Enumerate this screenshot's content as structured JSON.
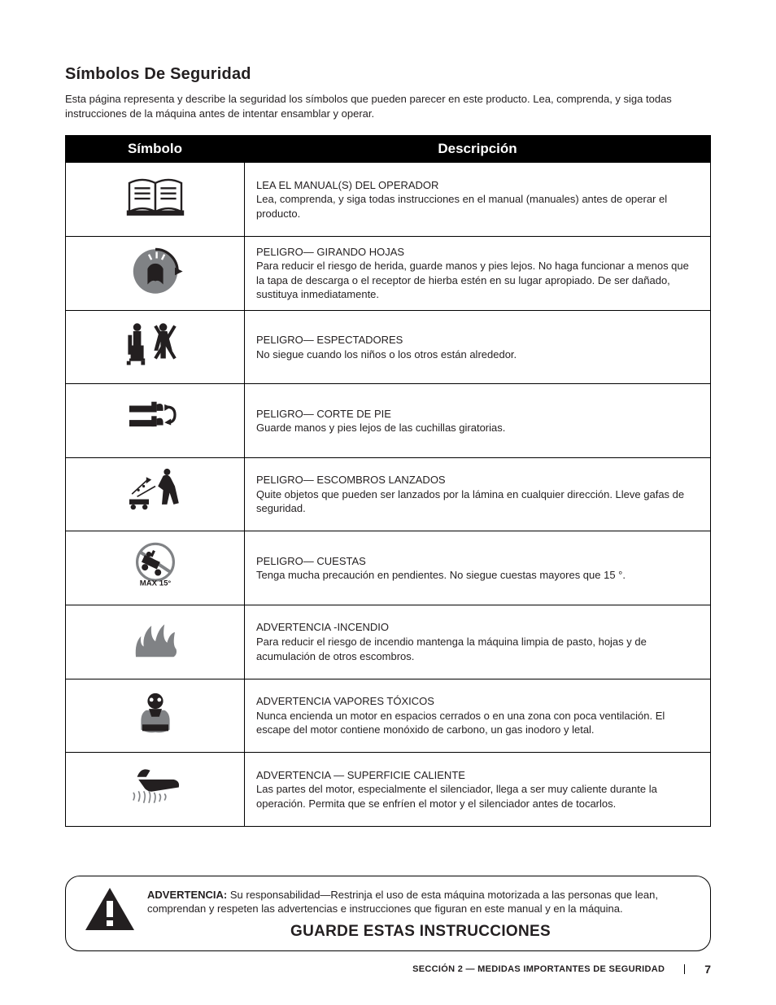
{
  "heading": "Símbolos De Seguridad",
  "intro": "Esta página representa y describe la seguridad los símbolos que pueden parecer en este producto. Lea, comprenda, y siga todas instrucciones  de la máquina antes de intentar ensamblar y operar.",
  "table": {
    "col_symbol": "Símbolo",
    "col_desc": "Descripción",
    "rows": [
      {
        "title": "LEA EL MANUAL(S) DEL OPERADOR",
        "body": "Lea, comprenda, y siga todas instrucciones en el manual (manuales) antes de operar el producto.",
        "icon": "read-manual"
      },
      {
        "title": "PELIGRO— GIRANDO HOJAS",
        "body": "Para reducir el riesgo de herida, guarde manos y pies lejos. No haga funcionar a menos que la tapa de descarga o el receptor de hierba estén en su lugar apropiado. De ser dañado, sustituya inmediatamente.",
        "icon": "rotating-blades"
      },
      {
        "title": "PELIGRO— ESPECTADORES",
        "body": "No siegue cuando los niños o los otros están alrededor.",
        "icon": "bystanders"
      },
      {
        "title": "PELIGRO— CORTE DE PIE",
        "body": "Guarde manos y pies lejos de las cuchillas giratorias.",
        "icon": "foot-cut"
      },
      {
        "title": "PELIGRO— ESCOMBROS LANZADOS",
        "body": "Quite objetos que pueden ser lanzados por la lámina en cualquier dirección. Lleve gafas de seguridad.",
        "icon": "thrown-debris"
      },
      {
        "title": "PELIGRO— CUESTAS",
        "body": "Tenga mucha precaución en pendientes. No siegue cuestas mayores que 15 °.",
        "icon": "slope"
      },
      {
        "title": "ADVERTENCIA -INCENDIO",
        "body": "Para reducir el riesgo de incendio mantenga la máquina limpia de pasto, hojas y de acumulación de otros escombros.",
        "icon": "fire"
      },
      {
        "title": "ADVERTENCIA VAPORES TÓXICOS",
        "body": "Nunca encienda un motor en espacios cerrados o en una zona con poca ventilación. El escape del motor contiene monóxido de carbono, un gas inodoro y letal.",
        "icon": "toxic-fumes"
      },
      {
        "title": "ADVERTENCIA — SUPERFICIE CALIENTE",
        "body": "Las partes del motor, especialmente el silenciador, llega a ser muy caliente durante la operación. Permita que se enfríen el motor y el silenciador antes de tocarlos.",
        "icon": "hot-surface"
      }
    ]
  },
  "warning_box": {
    "label": "ADVERTENCIA:",
    "text": " Su responsabilidad—Restrinja el uso de esta máquina motorizada a las personas que lean, comprendan y respeten las advertencias e instrucciones que figuran en este manual y en la máquina.",
    "save": "GUARDE ESTAS INSTRUCCIONES"
  },
  "footer": {
    "section_label_a": "Sección 2 — ",
    "section_label_b": "Medidas importantes de seguridad",
    "page": "7"
  },
  "svg_icons": {
    "read-manual": "<svg viewBox='0 0 100 80'><g fill='none' stroke='#231f20' stroke-width='3'><path d='M10 62 L10 18 Q30 8 50 18 L50 62 Q30 52 10 62 Z' fill='#fff'/><path d='M50 62 L50 18 Q70 8 90 18 L90 62 Q70 52 50 62 Z' fill='#fff'/><line x1='18' y1='26' x2='42' y2='26'/><line x1='18' y1='34' x2='42' y2='34'/><line x1='18' y1='42' x2='42' y2='42'/><line x1='58' y1='26' x2='82' y2='26'/><line x1='58' y1='34' x2='82' y2='34'/><line x1='58' y1='42' x2='82' y2='42'/><rect x='6' y='60' width='88' height='8' fill='#231f20' stroke='none'/></g></svg>",
    "rotating-blades": "<svg viewBox='0 0 100 80'><circle cx='50' cy='40' r='34' fill='#808285'/><path d='M50 6 A34 34 0 0 1 84 40' fill='none' stroke='#231f20' stroke-width='4'/><polygon points='80,34 92,40 80,46' fill='#231f20'/><path d='M38 60 L38 36 Q42 28 50 28 Q58 28 62 36 L62 60 Q55 52 50 55 Q45 52 38 60 Z' fill='#231f20'/><line x1='44' y1='22' x2='40' y2='14' stroke='#fff' stroke-width='3'/><line x1='52' y1='20' x2='52' y2='10' stroke='#fff' stroke-width='3'/><line x1='60' y1='22' x2='64' y2='14' stroke='#fff' stroke-width='3'/></svg>",
    "bystanders": "<svg viewBox='0 0 100 80'><g fill='#231f20'><circle cx='22' cy='12' r='6'/><rect x='16' y='18' width='12' height='22'/><rect x='12' y='40' width='20' height='20'/><rect x='8' y='24' width='6' height='30'/><circle cx='62' cy='12' r='6'/><path d='M56 18 L68 18 L76 48 L70 48 L66 34 L66 60 L58 60 L58 34 L54 48 L48 48 Z'/><line x1='50' y1='10' x2='80' y2='60' stroke='#231f20' stroke-width='5'/><line x1='80' y1='10' x2='50' y2='60' stroke='#231f20' stroke-width='5'/><rect x='10' y='60' width='24' height='4'/><rect x='6' y='64' width='6' height='6'/><rect x='28' y='64' width='6' height='6'/></g></svg>",
    "foot-cut": "<svg viewBox='0 0 100 80'><g fill='#231f20'><rect x='10' y='20' width='38' height='10'/><rect x='44' y='14' width='8' height='16'/><path d='M52 18 Q62 14 62 24 L62 28 L52 28 Z'/><rect x='10' y='42' width='38' height='10'/><rect x='44' y='36' width='8' height='16'/><path d='M52 40 Q62 36 62 46 L62 50 L52 50 Z'/><path d='M68 22 Q80 22 80 34 Q80 46 68 46' fill='none' stroke='#231f20' stroke-width='4'/><polygon points='64,18 74,22 64,28' /><polygon points='64,42 74,46 64,52' transform='rotate(180 69 46)'/></g></svg>",
    "thrown-debris": "<svg viewBox='0 0 100 80'><g fill='#231f20'><path d='M62 14 Q70 10 74 18 L80 30 L86 56 L78 58 L72 40 L68 58 L60 58 L62 36 L54 30 Z'/><circle cx='68' cy='8' r='5'/><rect x='10' y='50' width='30' height='8'/><circle cx='16' cy='62' r='4'/><circle cx='34' cy='62' r='4'/><line x1='14' y1='42' x2='38' y2='20' stroke='#231f20' stroke-width='2'/><polygon points='36,16 44,20 36,26'/><line x1='22' y1='46' x2='50' y2='30' stroke='#231f20' stroke-width='2'/><circle cx='24' cy='36' r='2'/><circle cx='32' cy='30' r='2'/></g></svg>",
    "slope": "<svg viewBox='0 0 100 80'><g><circle cx='50' cy='34' r='28' fill='none' stroke='#808285' stroke-width='4'/><line x1='26' y1='18' x2='74' y2='50' stroke='#808285' stroke-width='5'/><g fill='#231f20'><rect x='30' y='28' width='26' height='12' transform='rotate(25 43 34)'/><circle cx='34' cy='42' r='5'/><circle cx='54' cy='50' r='5'/><circle cx='40' cy='22' r='4'/><rect x='44' y='16' width='4' height='10' transform='rotate(25 46 21)'/></g><text x='50' y='70' text-anchor='middle' font-family='Arial' font-weight='bold' font-size='12' fill='#231f20'>MAX 15°</text></g></svg>",
    "fire": "<svg viewBox='0 0 100 80'><g fill='#808285'><path d='M20 66 Q18 44 28 34 Q26 46 32 50 Q30 30 44 18 Q42 36 50 42 Q54 24 64 16 Q60 38 68 44 Q72 30 80 28 Q76 48 82 54 Q84 62 78 66 Z'/></g></svg>",
    "toxic-fumes": "<svg viewBox='0 0 100 80'><g fill='#231f20'><circle cx='50' cy='20' r='12'/><circle cx='44' cy='18' r='3' fill='#fff'/><circle cx='56' cy='18' r='3' fill='#fff'/><path d='M36 34 Q28 38 28 50 L28 64 Q40 70 50 68 Q60 70 72 64 L72 50 Q72 38 64 34 Z' fill='#808285'/><path d='M40 32 L60 32 L56 44 L44 44 Z'/><rect x='30' y='56' width='40' height='10'/></g></svg>",
    "hot-surface": "<svg viewBox='0 0 100 80'><g fill='#231f20'><path d='M24 28 L78 28 Q88 30 86 40 L48 46 Q40 48 34 42 Z'/><path d='M22 24 Q28 8 42 14 L36 24 Z' /><g stroke='#808285' stroke-width='2' fill='none'><path d='M16 60 Q20 52 16 48'/><path d='M24 62 Q28 52 24 46'/><path d='M32 64 Q36 52 32 46'/><path d='M40 64 Q44 52 40 46'/><path d='M48 64 Q52 54 48 48'/><path d='M56 62 Q60 54 56 50'/><path d='M64 60 Q68 54 64 50'/></g></g></svg>"
  }
}
